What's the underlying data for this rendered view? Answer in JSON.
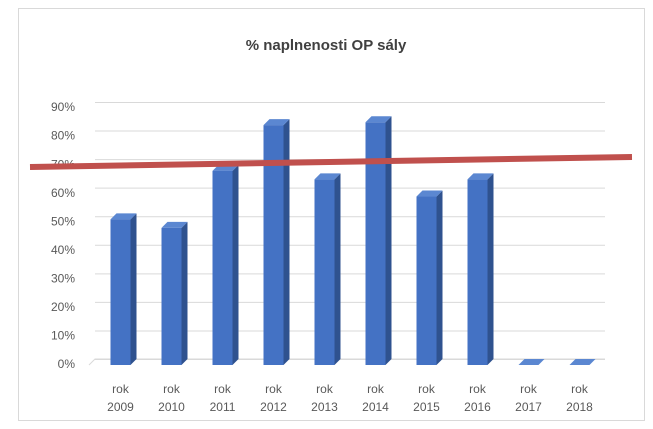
{
  "chart_data": {
    "type": "bar",
    "title": "% naplnenosti OP sály",
    "categories": [
      "rok 2009",
      "rok 2010",
      "rok 2011",
      "rok 2012",
      "rok 2013",
      "rok 2014",
      "rok 2015",
      "rok 2016",
      "rok 2017",
      "rok 2018"
    ],
    "values": [
      51,
      48,
      68,
      84,
      65,
      85,
      59,
      65,
      0,
      0
    ],
    "color": "#4472c4",
    "ylim": [
      0,
      90
    ],
    "yticks": [
      {
        "value": 0,
        "label": "0%"
      },
      {
        "value": 10,
        "label": "10%"
      },
      {
        "value": 20,
        "label": "20%"
      },
      {
        "value": 30,
        "label": "30%"
      },
      {
        "value": 40,
        "label": "40%"
      },
      {
        "value": 50,
        "label": "50%"
      },
      {
        "value": 60,
        "label": "60%"
      },
      {
        "value": 70,
        "label": "70%"
      },
      {
        "value": 80,
        "label": "80%"
      },
      {
        "value": 90,
        "label": "90%"
      }
    ],
    "grid": true
  }
}
